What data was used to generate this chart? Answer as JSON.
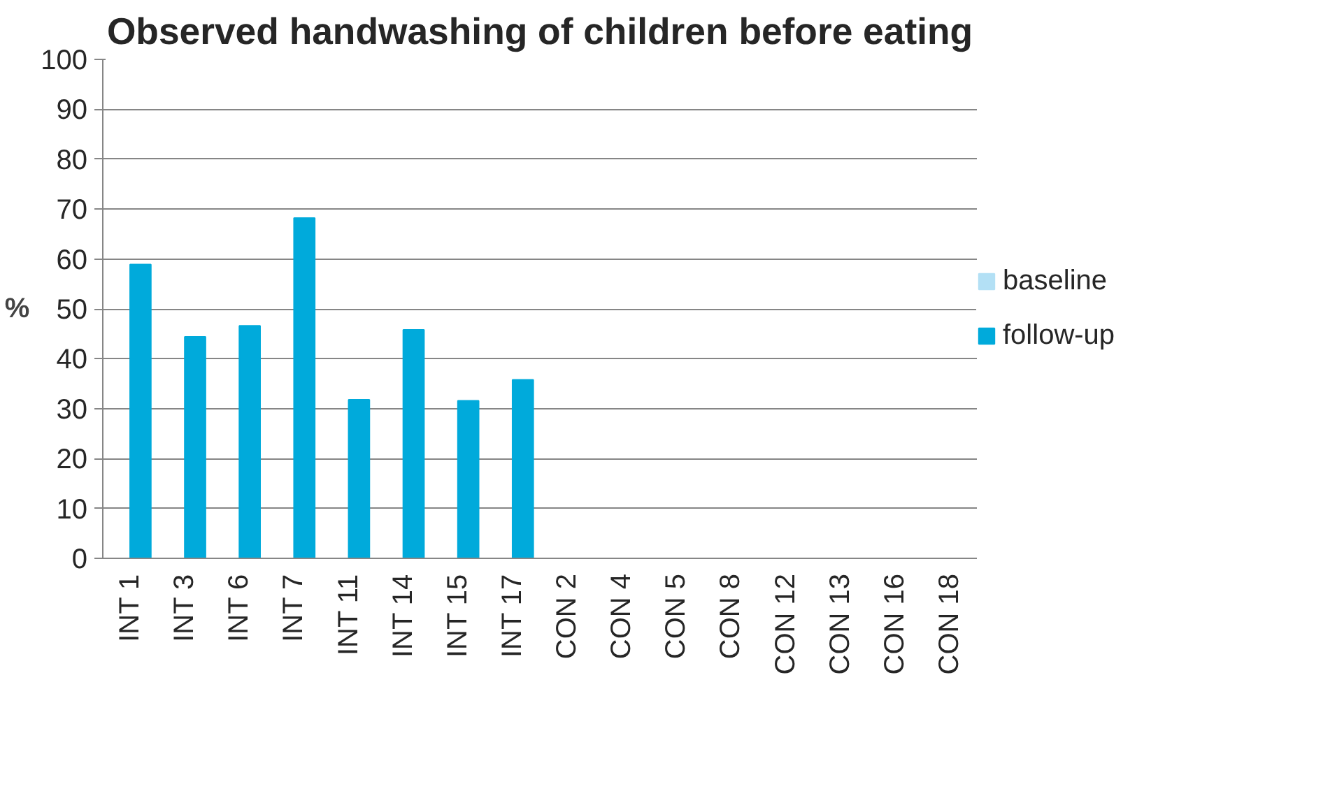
{
  "chart_data": {
    "type": "bar",
    "title": "Observed handwashing of children before eating",
    "ylabel": "%",
    "categories": [
      "INT 1",
      "INT 3",
      "INT 6",
      "INT 7",
      "INT 11",
      "INT 14",
      "INT 15",
      "INT 17",
      "CON 2",
      "CON 4",
      "CON 5",
      "CON 8",
      "CON 12",
      "CON 13",
      "CON 16",
      "CON 18"
    ],
    "series": [
      {
        "name": "baseline",
        "color": "#b3e0f5",
        "values": [
          null,
          null,
          null,
          null,
          null,
          null,
          null,
          null,
          null,
          null,
          null,
          null,
          null,
          null,
          null,
          null
        ]
      },
      {
        "name": "follow-up",
        "color": "#00aadb",
        "values": [
          58.9,
          44.4,
          46.6,
          68.2,
          31.8,
          45.8,
          31.6,
          35.8,
          null,
          null,
          null,
          null,
          null,
          null,
          null,
          null
        ]
      }
    ],
    "ylim": [
      0,
      100
    ],
    "yticks": [
      0,
      10,
      20,
      30,
      40,
      50,
      60,
      70,
      80,
      90,
      100
    ],
    "grid": "y",
    "legend": "right"
  }
}
